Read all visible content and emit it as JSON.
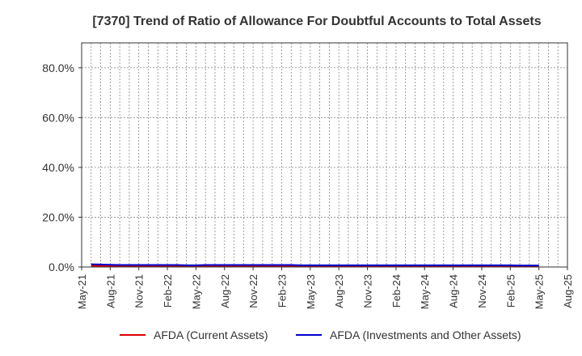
{
  "chart_data": {
    "type": "line",
    "title": "[7370]  Trend of Ratio of Allowance For Doubtful Accounts to Total Assets",
    "xlabel": "",
    "ylabel": "",
    "y_unit": "%",
    "ylim": [
      0,
      90
    ],
    "yticks": [
      0,
      20,
      40,
      60,
      80
    ],
    "ytick_labels": [
      "0.0%",
      "20.0%",
      "40.0%",
      "60.0%",
      "80.0%"
    ],
    "xlim": [
      "2021-05",
      "2025-08"
    ],
    "xtick_labels": [
      "May-21",
      "Aug-21",
      "Nov-21",
      "Feb-22",
      "May-22",
      "Aug-22",
      "Nov-22",
      "Feb-23",
      "May-23",
      "Aug-23",
      "Nov-23",
      "Feb-24",
      "May-24",
      "Aug-24",
      "Nov-24",
      "Feb-25",
      "May-25",
      "Aug-25"
    ],
    "grid": true,
    "legend_position": "bottom",
    "x": [
      "2021-06",
      "2021-07",
      "2021-08",
      "2021-09",
      "2021-10",
      "2021-11",
      "2021-12",
      "2022-01",
      "2022-02",
      "2022-03",
      "2022-04",
      "2022-05",
      "2022-06",
      "2022-07",
      "2022-08",
      "2022-09",
      "2022-10",
      "2022-11",
      "2022-12",
      "2023-01",
      "2023-02",
      "2023-03",
      "2023-04",
      "2023-05",
      "2023-06",
      "2023-07",
      "2023-08",
      "2023-09",
      "2023-10",
      "2023-11",
      "2023-12",
      "2024-01",
      "2024-02",
      "2024-03",
      "2024-04",
      "2024-05",
      "2024-06",
      "2024-07",
      "2024-08",
      "2024-09",
      "2024-10",
      "2024-11",
      "2024-12",
      "2025-01",
      "2025-02",
      "2025-03",
      "2025-04",
      "2025-05"
    ],
    "series": [
      {
        "name": "AFDA (Current Assets)",
        "color": "#dd0000",
        "values": [
          0.5,
          0.5,
          0.4,
          0.4,
          0.4,
          0.4,
          0.4,
          0.4,
          0.4,
          0.4,
          0.4,
          0.4,
          0.4,
          0.5,
          0.5,
          0.5,
          0.5,
          0.5,
          0.5,
          0.5,
          0.5,
          0.5,
          0.4,
          0.4,
          0.4,
          0.4,
          0.4,
          0.4,
          0.4,
          0.4,
          0.5,
          0.5,
          0.5,
          0.5,
          0.5,
          0.4,
          0.4,
          0.4,
          0.4,
          0.4,
          0.4,
          0.4,
          0.4,
          0.4,
          0.4,
          0.4,
          0.4,
          0.3
        ]
      },
      {
        "name": "AFDA (Investments and Other Assets)",
        "color": "#0000cc",
        "values": [
          1.1,
          1.0,
          0.9,
          0.8,
          0.8,
          0.8,
          0.8,
          0.8,
          0.8,
          0.8,
          0.7,
          0.7,
          0.8,
          0.8,
          0.8,
          0.8,
          0.8,
          0.8,
          0.8,
          0.8,
          0.8,
          0.8,
          0.7,
          0.7,
          0.7,
          0.7,
          0.7,
          0.7,
          0.7,
          0.7,
          0.7,
          0.7,
          0.7,
          0.7,
          0.7,
          0.7,
          0.7,
          0.7,
          0.7,
          0.7,
          0.7,
          0.7,
          0.7,
          0.7,
          0.7,
          0.6,
          0.6,
          0.6
        ]
      }
    ]
  }
}
